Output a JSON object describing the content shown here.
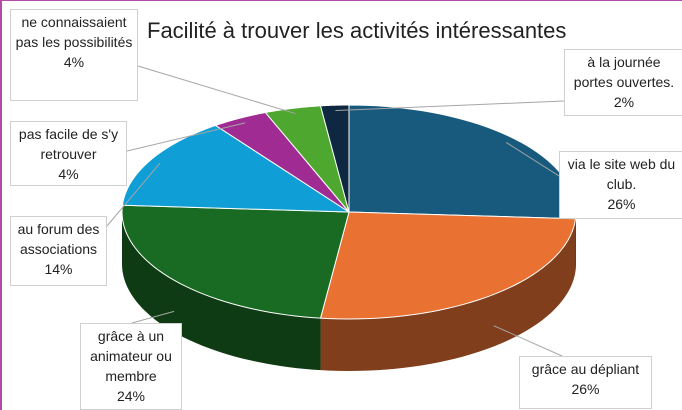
{
  "chart_data": {
    "type": "pie3d",
    "title": "Facilité à trouver les activités intéressantes",
    "categories": [
      "via le site web du club.",
      "grâce au dépliant",
      "grâce à un animateur ou membre",
      "au forum des associations",
      "pas facile de s'y retrouver",
      "ne connaissaient pas les possibilités",
      "à la journée portes ouvertes."
    ],
    "values": [
      26,
      26,
      24,
      14,
      4,
      4,
      2
    ],
    "value_labels": [
      "26%",
      "26%",
      "24%",
      "14%",
      "4%",
      "4%",
      "2%"
    ],
    "colors": [
      "#185a7d",
      "#e97132",
      "#196b24",
      "#0f9ed5",
      "#a02b93",
      "#4ea72e",
      "#0e2841"
    ]
  }
}
